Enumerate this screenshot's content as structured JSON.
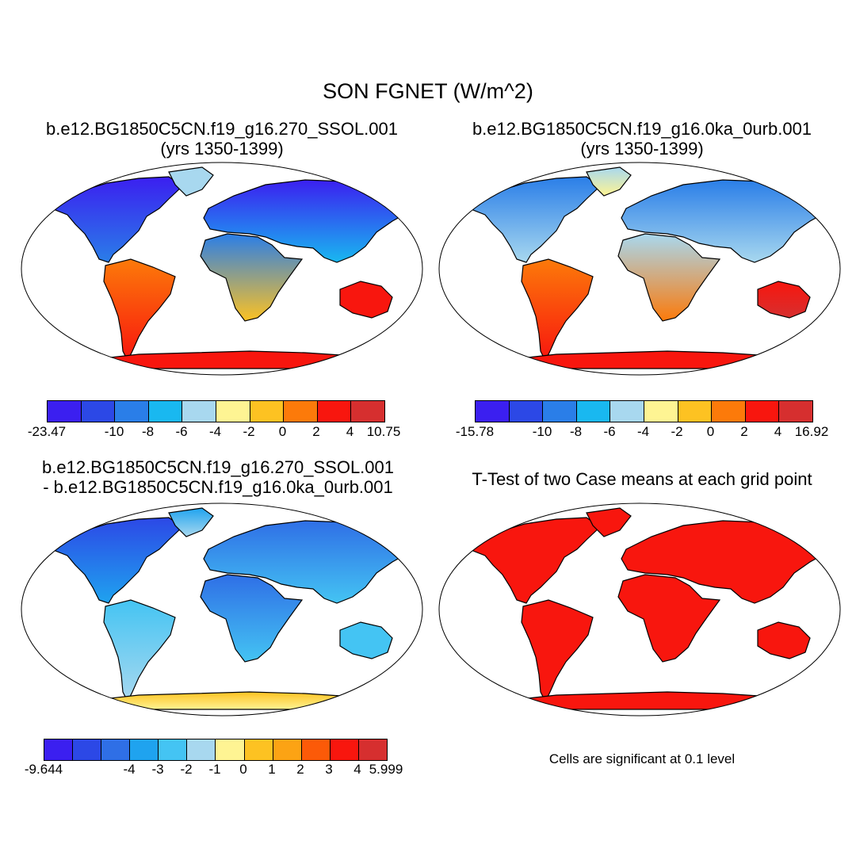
{
  "title": "SON FGNET (W/m^2)",
  "panels": [
    {
      "title_line1": "b.e12.BG1850C5CN.f19_g16.270_SSOL.001",
      "title_line2": "(yrs 1350-1399)",
      "palette": [
        "#3b1ff0",
        "#2c48e6",
        "#2a7ee8",
        "#19b8f0",
        "#a8d8ef",
        "#fef493",
        "#fdc222",
        "#fc7a0a",
        "#f8160e",
        "#d62f2f"
      ],
      "ticks": [
        "-23.47",
        "-10",
        "-8",
        "-6",
        "-4",
        "-2",
        "0",
        "2",
        "4",
        "10.75"
      ]
    },
    {
      "title_line1": "b.e12.BG1850C5CN.f19_g16.0ka_0urb.001",
      "title_line2": "(yrs 1350-1399)",
      "palette": [
        "#3b1ff0",
        "#2c48e6",
        "#2a7ee8",
        "#19b8f0",
        "#a8d8ef",
        "#fef493",
        "#fdc222",
        "#fc7a0a",
        "#f8160e",
        "#d62f2f"
      ],
      "ticks": [
        "-15.78",
        "-10",
        "-8",
        "-6",
        "-4",
        "-2",
        "0",
        "2",
        "4",
        "16.92"
      ]
    },
    {
      "title_line1": "b.e12.BG1850C5CN.f19_g16.270_SSOL.001",
      "title_line2": "- b.e12.BG1850C5CN.f19_g16.0ka_0urb.001",
      "palette": [
        "#3b1ff0",
        "#2c48e6",
        "#2f6fe6",
        "#1fa3ef",
        "#44c4f3",
        "#a8d8ef",
        "#fef493",
        "#fdc222",
        "#fca314",
        "#fc5a08",
        "#f8160e",
        "#d62f2f"
      ],
      "ticks": [
        "-9.644",
        "-4",
        "-3",
        "-2",
        "-1",
        "0",
        "1",
        "2",
        "3",
        "4",
        "5.999"
      ]
    },
    {
      "title_line1": "T-Test of two Case means at each grid point",
      "note": "Cells are significant at 0.1 level"
    }
  ]
}
